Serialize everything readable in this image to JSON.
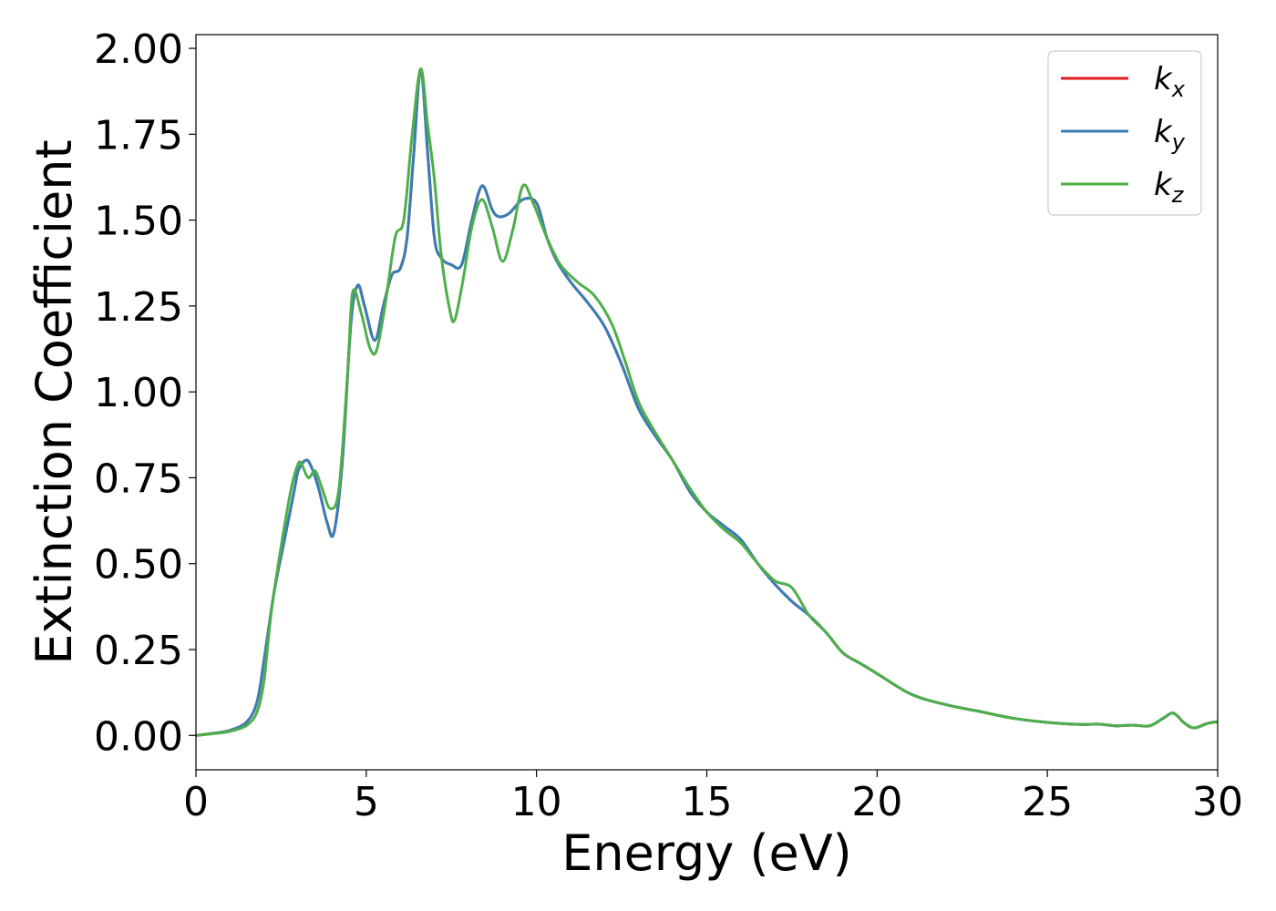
{
  "chart_data": {
    "type": "line",
    "title": "",
    "xlabel": "Energy (eV)",
    "ylabel": "Extinction Coefficient",
    "xlim": [
      0,
      30
    ],
    "ylim": [
      -0.1,
      2.04
    ],
    "xticks": [
      0,
      5,
      10,
      15,
      20,
      25,
      30
    ],
    "xtick_labels": [
      "0",
      "5",
      "10",
      "15",
      "20",
      "25",
      "30"
    ],
    "yticks": [
      0,
      0.25,
      0.5,
      0.75,
      1.0,
      1.25,
      1.5,
      1.75,
      2.0
    ],
    "ytick_labels": [
      "0.00",
      "0.25",
      "0.50",
      "0.75",
      "1.00",
      "1.25",
      "1.50",
      "1.75",
      "2.00"
    ],
    "grid": false,
    "legend_position": "top-right",
    "series": [
      {
        "name": "k",
        "subscript": "x",
        "color": "#e41a1c",
        "x": [
          0,
          0.5,
          1.0,
          1.5,
          1.8,
          2.0,
          2.3,
          2.6,
          2.9,
          3.0,
          3.2,
          3.35,
          3.6,
          3.85,
          4.05,
          4.3,
          4.55,
          4.75,
          4.95,
          5.25,
          5.5,
          5.75,
          6.0,
          6.2,
          6.4,
          6.6,
          6.8,
          7.0,
          7.2,
          7.5,
          7.8,
          8.1,
          8.4,
          8.7,
          8.9,
          9.2,
          9.6,
          10.0,
          10.3,
          10.6,
          11.0,
          11.5,
          12.0,
          12.5,
          13.0,
          13.5,
          14.0,
          14.5,
          15.0,
          15.5,
          16.0,
          16.5,
          17.0,
          17.5,
          18.0,
          18.5,
          19.0,
          19.5,
          20.0,
          21.0,
          22.0,
          23.0,
          24.0,
          25.0,
          26.0,
          26.5,
          27.0,
          27.5,
          28.0,
          28.4,
          28.7,
          29.0,
          29.3,
          29.7,
          30.0
        ],
        "y": [
          0.0,
          0.006,
          0.015,
          0.04,
          0.1,
          0.22,
          0.42,
          0.57,
          0.72,
          0.77,
          0.8,
          0.79,
          0.72,
          0.62,
          0.59,
          0.8,
          1.2,
          1.31,
          1.25,
          1.15,
          1.25,
          1.34,
          1.36,
          1.45,
          1.7,
          1.94,
          1.7,
          1.45,
          1.39,
          1.37,
          1.37,
          1.5,
          1.6,
          1.53,
          1.51,
          1.52,
          1.56,
          1.55,
          1.45,
          1.38,
          1.32,
          1.26,
          1.19,
          1.08,
          0.95,
          0.87,
          0.8,
          0.71,
          0.65,
          0.61,
          0.57,
          0.5,
          0.44,
          0.39,
          0.35,
          0.3,
          0.24,
          0.21,
          0.18,
          0.12,
          0.09,
          0.07,
          0.05,
          0.038,
          0.032,
          0.033,
          0.028,
          0.03,
          0.028,
          0.05,
          0.065,
          0.038,
          0.022,
          0.035,
          0.04
        ]
      },
      {
        "name": "k",
        "subscript": "y",
        "color": "#377eb8",
        "x": [
          0,
          0.5,
          1.0,
          1.5,
          1.8,
          2.0,
          2.3,
          2.6,
          2.9,
          3.0,
          3.2,
          3.35,
          3.6,
          3.85,
          4.05,
          4.3,
          4.55,
          4.75,
          4.95,
          5.25,
          5.5,
          5.75,
          6.0,
          6.2,
          6.4,
          6.6,
          6.8,
          7.0,
          7.2,
          7.5,
          7.8,
          8.1,
          8.4,
          8.7,
          8.9,
          9.2,
          9.6,
          10.0,
          10.3,
          10.6,
          11.0,
          11.5,
          12.0,
          12.5,
          13.0,
          13.5,
          14.0,
          14.5,
          15.0,
          15.5,
          16.0,
          16.5,
          17.0,
          17.5,
          18.0,
          18.5,
          19.0,
          19.5,
          20.0,
          21.0,
          22.0,
          23.0,
          24.0,
          25.0,
          26.0,
          26.5,
          27.0,
          27.5,
          28.0,
          28.4,
          28.7,
          29.0,
          29.3,
          29.7,
          30.0
        ],
        "y": [
          0.0,
          0.006,
          0.015,
          0.04,
          0.1,
          0.22,
          0.42,
          0.57,
          0.72,
          0.77,
          0.8,
          0.79,
          0.72,
          0.62,
          0.59,
          0.8,
          1.2,
          1.31,
          1.25,
          1.15,
          1.25,
          1.34,
          1.36,
          1.45,
          1.7,
          1.94,
          1.7,
          1.45,
          1.39,
          1.37,
          1.37,
          1.5,
          1.6,
          1.53,
          1.51,
          1.52,
          1.56,
          1.55,
          1.45,
          1.38,
          1.32,
          1.26,
          1.19,
          1.08,
          0.95,
          0.87,
          0.8,
          0.71,
          0.65,
          0.61,
          0.57,
          0.5,
          0.44,
          0.39,
          0.35,
          0.3,
          0.24,
          0.21,
          0.18,
          0.12,
          0.09,
          0.07,
          0.05,
          0.038,
          0.032,
          0.033,
          0.028,
          0.03,
          0.028,
          0.05,
          0.065,
          0.038,
          0.022,
          0.035,
          0.04
        ]
      },
      {
        "name": "k",
        "subscript": "z",
        "color": "#4daf4a",
        "x": [
          0,
          0.5,
          1.0,
          1.5,
          1.8,
          2.0,
          2.2,
          2.5,
          2.8,
          3.0,
          3.1,
          3.3,
          3.5,
          3.7,
          3.95,
          4.2,
          4.45,
          4.6,
          4.85,
          5.1,
          5.3,
          5.55,
          5.85,
          6.1,
          6.35,
          6.6,
          6.8,
          7.0,
          7.2,
          7.45,
          7.6,
          7.85,
          8.1,
          8.4,
          8.7,
          9.0,
          9.3,
          9.6,
          9.9,
          10.3,
          10.7,
          11.2,
          11.7,
          12.2,
          12.6,
          13.0,
          13.5,
          14.0,
          14.5,
          15.0,
          15.5,
          16.0,
          16.5,
          17.0,
          17.5,
          18.0,
          18.5,
          19.0,
          19.5,
          20.0,
          21.0,
          22.0,
          23.0,
          24.0,
          25.0,
          26.0,
          26.5,
          27.0,
          27.5,
          28.0,
          28.4,
          28.7,
          29.0,
          29.3,
          29.7,
          30.0
        ],
        "y": [
          0.0,
          0.005,
          0.012,
          0.03,
          0.07,
          0.16,
          0.35,
          0.55,
          0.72,
          0.79,
          0.79,
          0.75,
          0.77,
          0.72,
          0.66,
          0.72,
          1.05,
          1.29,
          1.23,
          1.13,
          1.12,
          1.25,
          1.45,
          1.5,
          1.75,
          1.94,
          1.78,
          1.62,
          1.4,
          1.24,
          1.21,
          1.33,
          1.48,
          1.56,
          1.48,
          1.38,
          1.47,
          1.6,
          1.55,
          1.45,
          1.37,
          1.32,
          1.28,
          1.2,
          1.09,
          0.97,
          0.88,
          0.8,
          0.72,
          0.65,
          0.6,
          0.56,
          0.5,
          0.45,
          0.43,
          0.35,
          0.3,
          0.24,
          0.21,
          0.18,
          0.12,
          0.09,
          0.07,
          0.05,
          0.038,
          0.032,
          0.033,
          0.028,
          0.03,
          0.028,
          0.05,
          0.065,
          0.038,
          0.022,
          0.035,
          0.04
        ]
      }
    ]
  }
}
